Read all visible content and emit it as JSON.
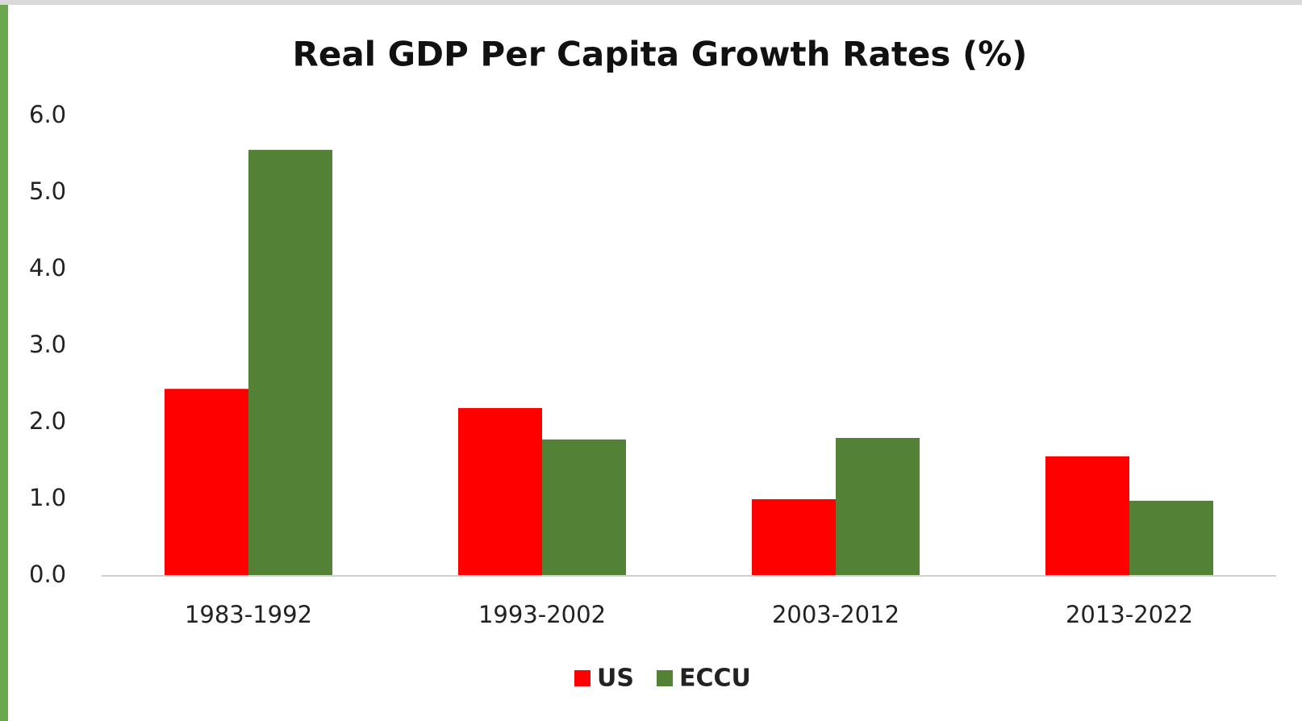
{
  "chart_data": {
    "type": "bar",
    "title": "Real GDP Per Capita Growth Rates (%)",
    "categories": [
      "1983-1992",
      "1993-2002",
      "2003-2012",
      "2013-2022"
    ],
    "series": [
      {
        "name": "US",
        "color": "#ff0000",
        "values": [
          2.44,
          2.19,
          1.0,
          1.56
        ]
      },
      {
        "name": "ECCU",
        "color": "#538135",
        "values": [
          5.56,
          1.78,
          1.8,
          0.98
        ]
      }
    ],
    "ylim": [
      0,
      6
    ],
    "yticks": [
      {
        "value": 0,
        "label": "0.0"
      },
      {
        "value": 1,
        "label": "1.0"
      },
      {
        "value": 2,
        "label": "2.0"
      },
      {
        "value": 3,
        "label": "3.0"
      },
      {
        "value": 4,
        "label": "4.0"
      },
      {
        "value": 5,
        "label": "5.0"
      },
      {
        "value": 6,
        "label": "6.0"
      }
    ],
    "grid": false,
    "legend": "bottom"
  }
}
